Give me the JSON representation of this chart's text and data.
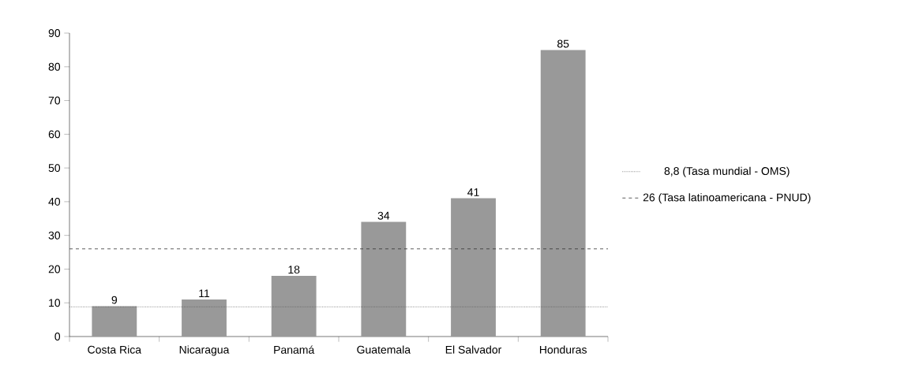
{
  "chart_data": {
    "type": "bar",
    "categories": [
      "Costa Rica",
      "Nicaragua",
      "Panamá",
      "Guatemala",
      "El Salvador",
      "Honduras"
    ],
    "values": [
      9,
      11,
      18,
      34,
      41,
      85
    ],
    "color": "#999999",
    "ylim": [
      0,
      90
    ],
    "yticks": [
      0,
      10,
      20,
      30,
      40,
      50,
      60,
      70,
      80,
      90
    ],
    "data_labels": true,
    "grid": false,
    "legend": "right",
    "ref_lines": [
      {
        "axis": "y",
        "value": 8.8,
        "label": "8,8 (Tasa mundial - OMS)",
        "color": "#555555",
        "line_style": "dotted"
      },
      {
        "axis": "y",
        "value": 26,
        "label": "26 (Tasa latinoamericana - PNUD)",
        "color": "#333333",
        "line_style": "dashed"
      }
    ]
  }
}
